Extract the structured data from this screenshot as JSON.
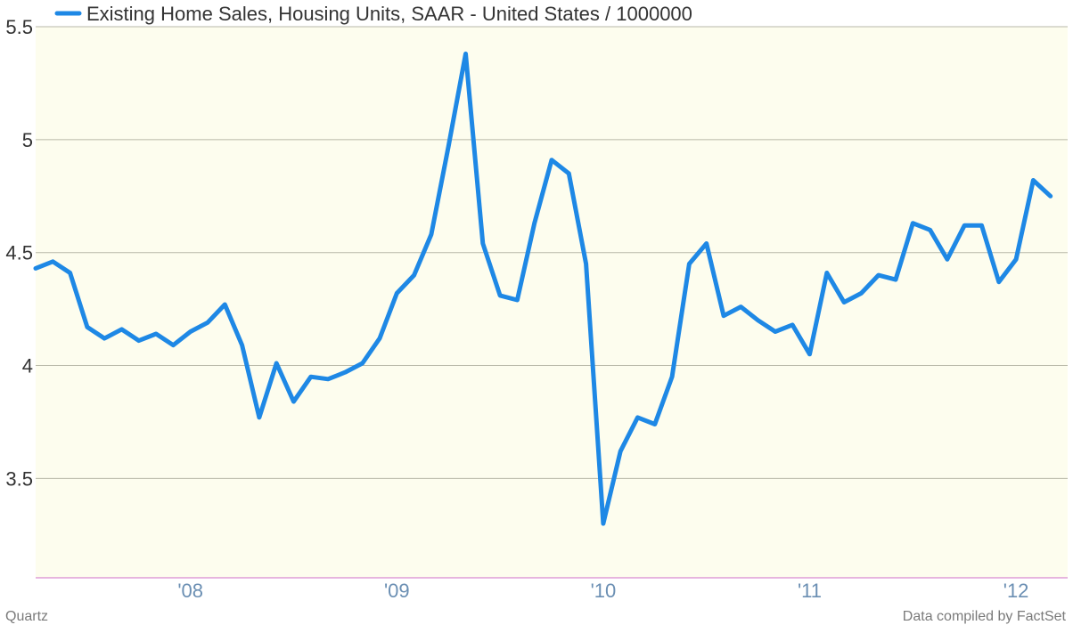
{
  "chart_data": {
    "type": "line",
    "legend": {
      "label": "Existing Home Sales, Housing Units, SAAR - United States / 1000000",
      "position": "top-left"
    },
    "ylim": [
      3.06,
      5.5
    ],
    "yticks": [
      3.5,
      4,
      4.5,
      5,
      5.5
    ],
    "ytick_labels": [
      "3.5",
      "4",
      "4.5",
      "5",
      "5.5"
    ],
    "x_range": [
      "2007-04",
      "2012-04"
    ],
    "xticks": [
      "2008-01",
      "2009-01",
      "2010-01",
      "2011-01",
      "2012-01"
    ],
    "xtick_labels": [
      "'08",
      "'09",
      "'10",
      "'11",
      "'12"
    ],
    "grid": true,
    "series": [
      {
        "color": "#1e88e5",
        "x": [
          "2007-04",
          "2007-05",
          "2007-06",
          "2007-07",
          "2007-08",
          "2007-09",
          "2007-10",
          "2007-11",
          "2007-12",
          "2008-01",
          "2008-02",
          "2008-03",
          "2008-04",
          "2008-05",
          "2008-06",
          "2008-07",
          "2008-08",
          "2008-09",
          "2008-10",
          "2008-11",
          "2008-12",
          "2009-01",
          "2009-02",
          "2009-03",
          "2009-04",
          "2009-05",
          "2009-06",
          "2009-07",
          "2009-08",
          "2009-09",
          "2009-10",
          "2009-11",
          "2009-12",
          "2010-01",
          "2010-02",
          "2010-03",
          "2010-04",
          "2010-05",
          "2010-06",
          "2010-07",
          "2010-08",
          "2010-09",
          "2010-10",
          "2010-11",
          "2010-12",
          "2011-01",
          "2011-02",
          "2011-03",
          "2011-04",
          "2011-05",
          "2011-06",
          "2011-07",
          "2011-08",
          "2011-09",
          "2011-10",
          "2011-11",
          "2011-12",
          "2012-01",
          "2012-02",
          "2012-03"
        ],
        "values": [
          4.43,
          4.46,
          4.41,
          4.17,
          4.12,
          4.16,
          4.11,
          4.14,
          4.09,
          4.15,
          4.19,
          4.27,
          4.09,
          3.77,
          4.01,
          3.84,
          3.95,
          3.94,
          3.97,
          4.01,
          4.12,
          4.32,
          4.4,
          4.58,
          4.97,
          5.38,
          4.54,
          4.31,
          4.29,
          4.63,
          4.91,
          4.85,
          4.45,
          3.3,
          3.62,
          3.77,
          3.74,
          3.95,
          4.45,
          4.54,
          4.22,
          4.26,
          4.2,
          4.15,
          4.18,
          4.05,
          4.41,
          4.28,
          4.32,
          4.4,
          4.38,
          4.63,
          4.6,
          4.47,
          4.62,
          4.62,
          4.37,
          4.47,
          4.82,
          4.75
        ]
      }
    ]
  },
  "footer": {
    "source_left": "Quartz",
    "source_right": "Data compiled by FactSet"
  }
}
